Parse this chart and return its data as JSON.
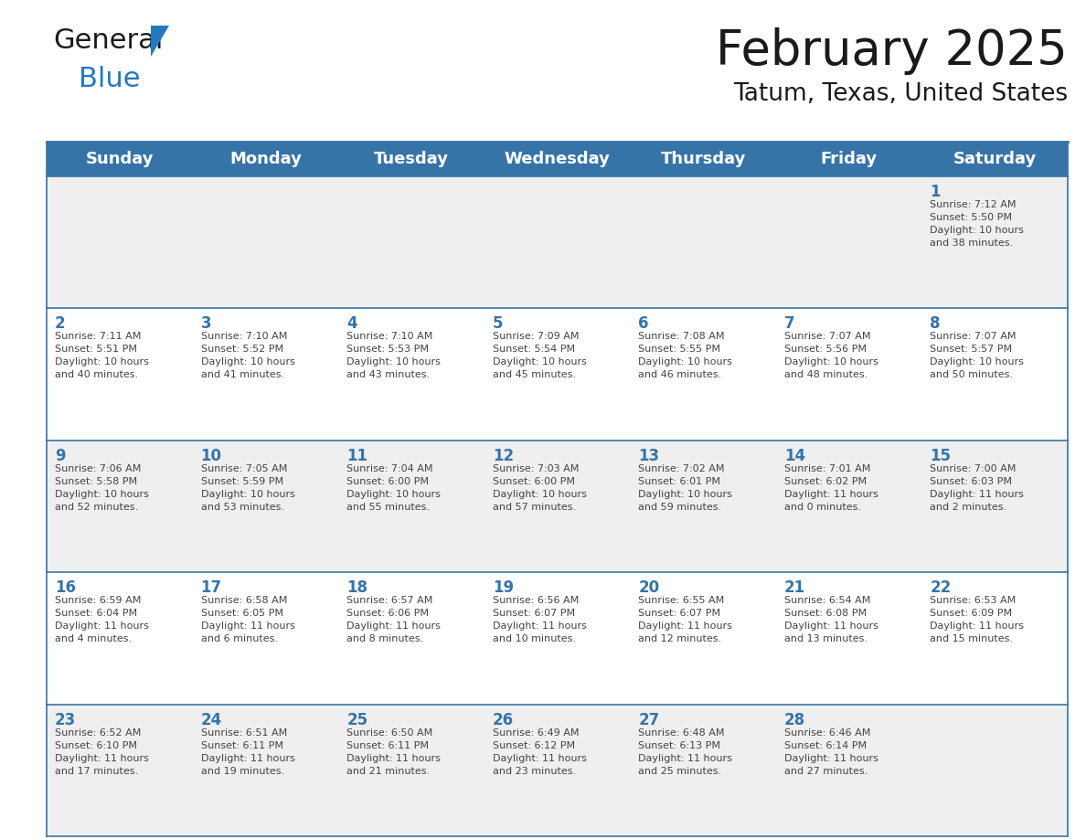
{
  "title": "February 2025",
  "subtitle": "Tatum, Texas, United States",
  "days_of_week": [
    "Sunday",
    "Monday",
    "Tuesday",
    "Wednesday",
    "Thursday",
    "Friday",
    "Saturday"
  ],
  "header_bg": "#3674A8",
  "header_text_color": "#FFFFFF",
  "cell_bg_even": "#EFEFEF",
  "cell_bg_odd": "#FFFFFF",
  "cell_border_color": "#3674A8",
  "day_number_color": "#3674A8",
  "info_text_color": "#444444",
  "title_color": "#1A1A1A",
  "subtitle_color": "#1A1A1A",
  "logo_color_general": "#1A1A1A",
  "logo_color_blue": "#2478BE",
  "logo_triangle_color": "#2478BE",
  "calendar": [
    [
      null,
      null,
      null,
      null,
      null,
      null,
      {
        "day": 1,
        "sunrise": "7:12 AM",
        "sunset": "5:50 PM",
        "daylight": "10 hours\nand 38 minutes."
      }
    ],
    [
      {
        "day": 2,
        "sunrise": "7:11 AM",
        "sunset": "5:51 PM",
        "daylight": "10 hours\nand 40 minutes."
      },
      {
        "day": 3,
        "sunrise": "7:10 AM",
        "sunset": "5:52 PM",
        "daylight": "10 hours\nand 41 minutes."
      },
      {
        "day": 4,
        "sunrise": "7:10 AM",
        "sunset": "5:53 PM",
        "daylight": "10 hours\nand 43 minutes."
      },
      {
        "day": 5,
        "sunrise": "7:09 AM",
        "sunset": "5:54 PM",
        "daylight": "10 hours\nand 45 minutes."
      },
      {
        "day": 6,
        "sunrise": "7:08 AM",
        "sunset": "5:55 PM",
        "daylight": "10 hours\nand 46 minutes."
      },
      {
        "day": 7,
        "sunrise": "7:07 AM",
        "sunset": "5:56 PM",
        "daylight": "10 hours\nand 48 minutes."
      },
      {
        "day": 8,
        "sunrise": "7:07 AM",
        "sunset": "5:57 PM",
        "daylight": "10 hours\nand 50 minutes."
      }
    ],
    [
      {
        "day": 9,
        "sunrise": "7:06 AM",
        "sunset": "5:58 PM",
        "daylight": "10 hours\nand 52 minutes."
      },
      {
        "day": 10,
        "sunrise": "7:05 AM",
        "sunset": "5:59 PM",
        "daylight": "10 hours\nand 53 minutes."
      },
      {
        "day": 11,
        "sunrise": "7:04 AM",
        "sunset": "6:00 PM",
        "daylight": "10 hours\nand 55 minutes."
      },
      {
        "day": 12,
        "sunrise": "7:03 AM",
        "sunset": "6:00 PM",
        "daylight": "10 hours\nand 57 minutes."
      },
      {
        "day": 13,
        "sunrise": "7:02 AM",
        "sunset": "6:01 PM",
        "daylight": "10 hours\nand 59 minutes."
      },
      {
        "day": 14,
        "sunrise": "7:01 AM",
        "sunset": "6:02 PM",
        "daylight": "11 hours\nand 0 minutes."
      },
      {
        "day": 15,
        "sunrise": "7:00 AM",
        "sunset": "6:03 PM",
        "daylight": "11 hours\nand 2 minutes."
      }
    ],
    [
      {
        "day": 16,
        "sunrise": "6:59 AM",
        "sunset": "6:04 PM",
        "daylight": "11 hours\nand 4 minutes."
      },
      {
        "day": 17,
        "sunrise": "6:58 AM",
        "sunset": "6:05 PM",
        "daylight": "11 hours\nand 6 minutes."
      },
      {
        "day": 18,
        "sunrise": "6:57 AM",
        "sunset": "6:06 PM",
        "daylight": "11 hours\nand 8 minutes."
      },
      {
        "day": 19,
        "sunrise": "6:56 AM",
        "sunset": "6:07 PM",
        "daylight": "11 hours\nand 10 minutes."
      },
      {
        "day": 20,
        "sunrise": "6:55 AM",
        "sunset": "6:07 PM",
        "daylight": "11 hours\nand 12 minutes."
      },
      {
        "day": 21,
        "sunrise": "6:54 AM",
        "sunset": "6:08 PM",
        "daylight": "11 hours\nand 13 minutes."
      },
      {
        "day": 22,
        "sunrise": "6:53 AM",
        "sunset": "6:09 PM",
        "daylight": "11 hours\nand 15 minutes."
      }
    ],
    [
      {
        "day": 23,
        "sunrise": "6:52 AM",
        "sunset": "6:10 PM",
        "daylight": "11 hours\nand 17 minutes."
      },
      {
        "day": 24,
        "sunrise": "6:51 AM",
        "sunset": "6:11 PM",
        "daylight": "11 hours\nand 19 minutes."
      },
      {
        "day": 25,
        "sunrise": "6:50 AM",
        "sunset": "6:11 PM",
        "daylight": "11 hours\nand 21 minutes."
      },
      {
        "day": 26,
        "sunrise": "6:49 AM",
        "sunset": "6:12 PM",
        "daylight": "11 hours\nand 23 minutes."
      },
      {
        "day": 27,
        "sunrise": "6:48 AM",
        "sunset": "6:13 PM",
        "daylight": "11 hours\nand 25 minutes."
      },
      {
        "day": 28,
        "sunrise": "6:46 AM",
        "sunset": "6:14 PM",
        "daylight": "11 hours\nand 27 minutes."
      },
      null
    ]
  ]
}
